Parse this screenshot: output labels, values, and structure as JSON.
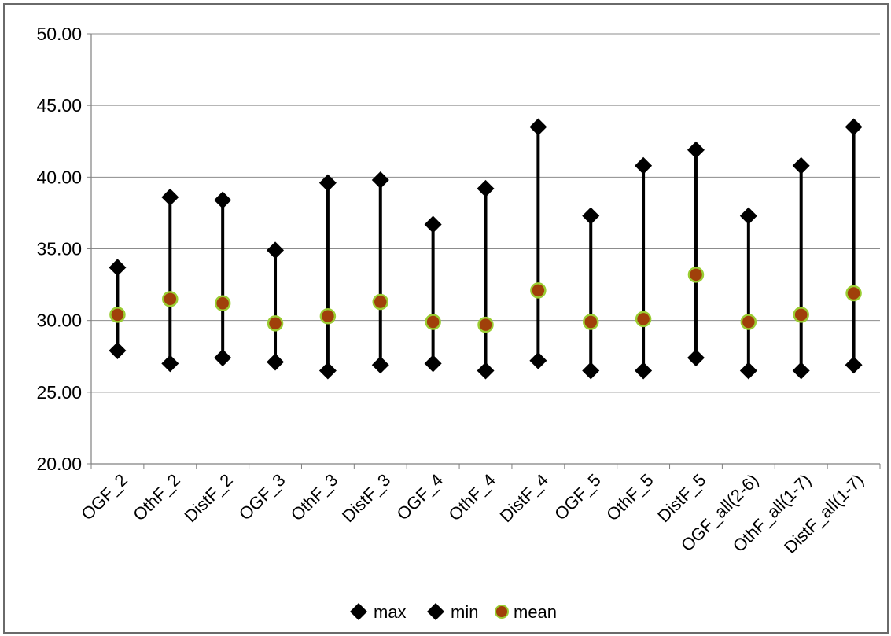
{
  "chart_data": {
    "type": "scatter",
    "title": "",
    "xlabel": "",
    "ylabel": "",
    "categories": [
      "OGF_2",
      "OthF_2",
      "DistF_2",
      "OGF_3",
      "OthF_3",
      "DistF_3",
      "OGF_4",
      "OthF_4",
      "DistF_4",
      "OGF_5",
      "OthF_5",
      "DistF_5",
      "OGF_all(2-6)",
      "OthF_all(1-7)",
      "DistF_all(1-7)"
    ],
    "series": [
      {
        "name": "max",
        "marker": "diamond",
        "color": "#000000",
        "values": [
          33.7,
          38.6,
          38.4,
          34.9,
          39.6,
          39.8,
          36.7,
          39.2,
          43.5,
          37.3,
          40.8,
          41.9,
          37.3,
          40.8,
          43.5
        ]
      },
      {
        "name": "min",
        "marker": "diamond",
        "color": "#000000",
        "values": [
          27.9,
          27.0,
          27.4,
          27.1,
          26.5,
          26.9,
          27.0,
          26.5,
          27.2,
          26.5,
          26.5,
          27.4,
          26.5,
          26.5,
          26.9
        ]
      },
      {
        "name": "mean",
        "marker": "circle",
        "color": "#a0400a",
        "edge_color": "#9acd32",
        "values": [
          30.4,
          31.5,
          31.2,
          29.8,
          30.3,
          31.3,
          29.9,
          29.7,
          32.1,
          29.9,
          30.1,
          33.2,
          29.9,
          30.4,
          31.9
        ]
      }
    ],
    "yticks": [
      "20.00",
      "25.00",
      "30.00",
      "35.00",
      "40.00",
      "45.00",
      "50.00"
    ],
    "ylim": [
      20,
      50
    ],
    "grid": true,
    "legend_position": "bottom",
    "range_lines": true
  }
}
